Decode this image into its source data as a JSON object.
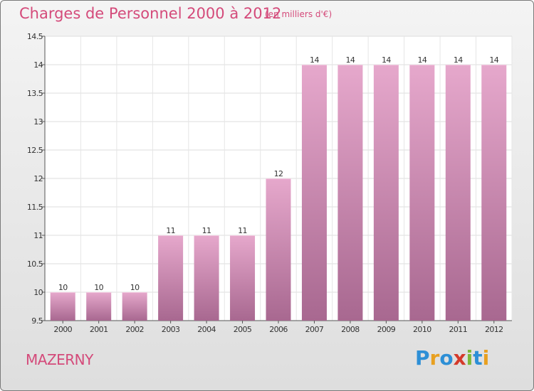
{
  "header": {
    "title": "Charges de Personnel 2000 à 2012",
    "subtitle": "(en milliers d'€)"
  },
  "commune_name": "MAZERNY",
  "brand": {
    "letters": [
      "P",
      "r",
      "o",
      "x",
      "i",
      "t",
      "i"
    ],
    "colors": [
      "#2d8fd6",
      "#e8a020",
      "#2d8fd6",
      "#d43a2a",
      "#7cb83a",
      "#2d8fd6",
      "#e8a020"
    ]
  },
  "colors": {
    "bar_top": "#e6a8cc",
    "bar_bottom": "#a86890",
    "accent": "#d44a7a"
  },
  "chart_data": {
    "type": "bar",
    "title": "Charges de Personnel 2000 à 2012",
    "subtitle": "(en milliers d'€)",
    "categories": [
      "2000",
      "2001",
      "2002",
      "2003",
      "2004",
      "2005",
      "2006",
      "2007",
      "2008",
      "2009",
      "2010",
      "2011",
      "2012"
    ],
    "values": [
      10,
      10,
      10,
      11,
      11,
      11,
      12,
      14,
      14,
      14,
      14,
      14,
      14
    ],
    "data_labels": [
      "10",
      "10",
      "10",
      "11",
      "11",
      "11",
      "12",
      "14",
      "14",
      "14",
      "14",
      "14",
      "14"
    ],
    "ylim": [
      9.5,
      14.5
    ],
    "yticks": [
      "9.5",
      "10",
      "10.5",
      "11",
      "11.5",
      "12",
      "12.5",
      "13",
      "13.5",
      "14",
      "14.5"
    ],
    "grid": true,
    "xlabel": "",
    "ylabel": ""
  }
}
